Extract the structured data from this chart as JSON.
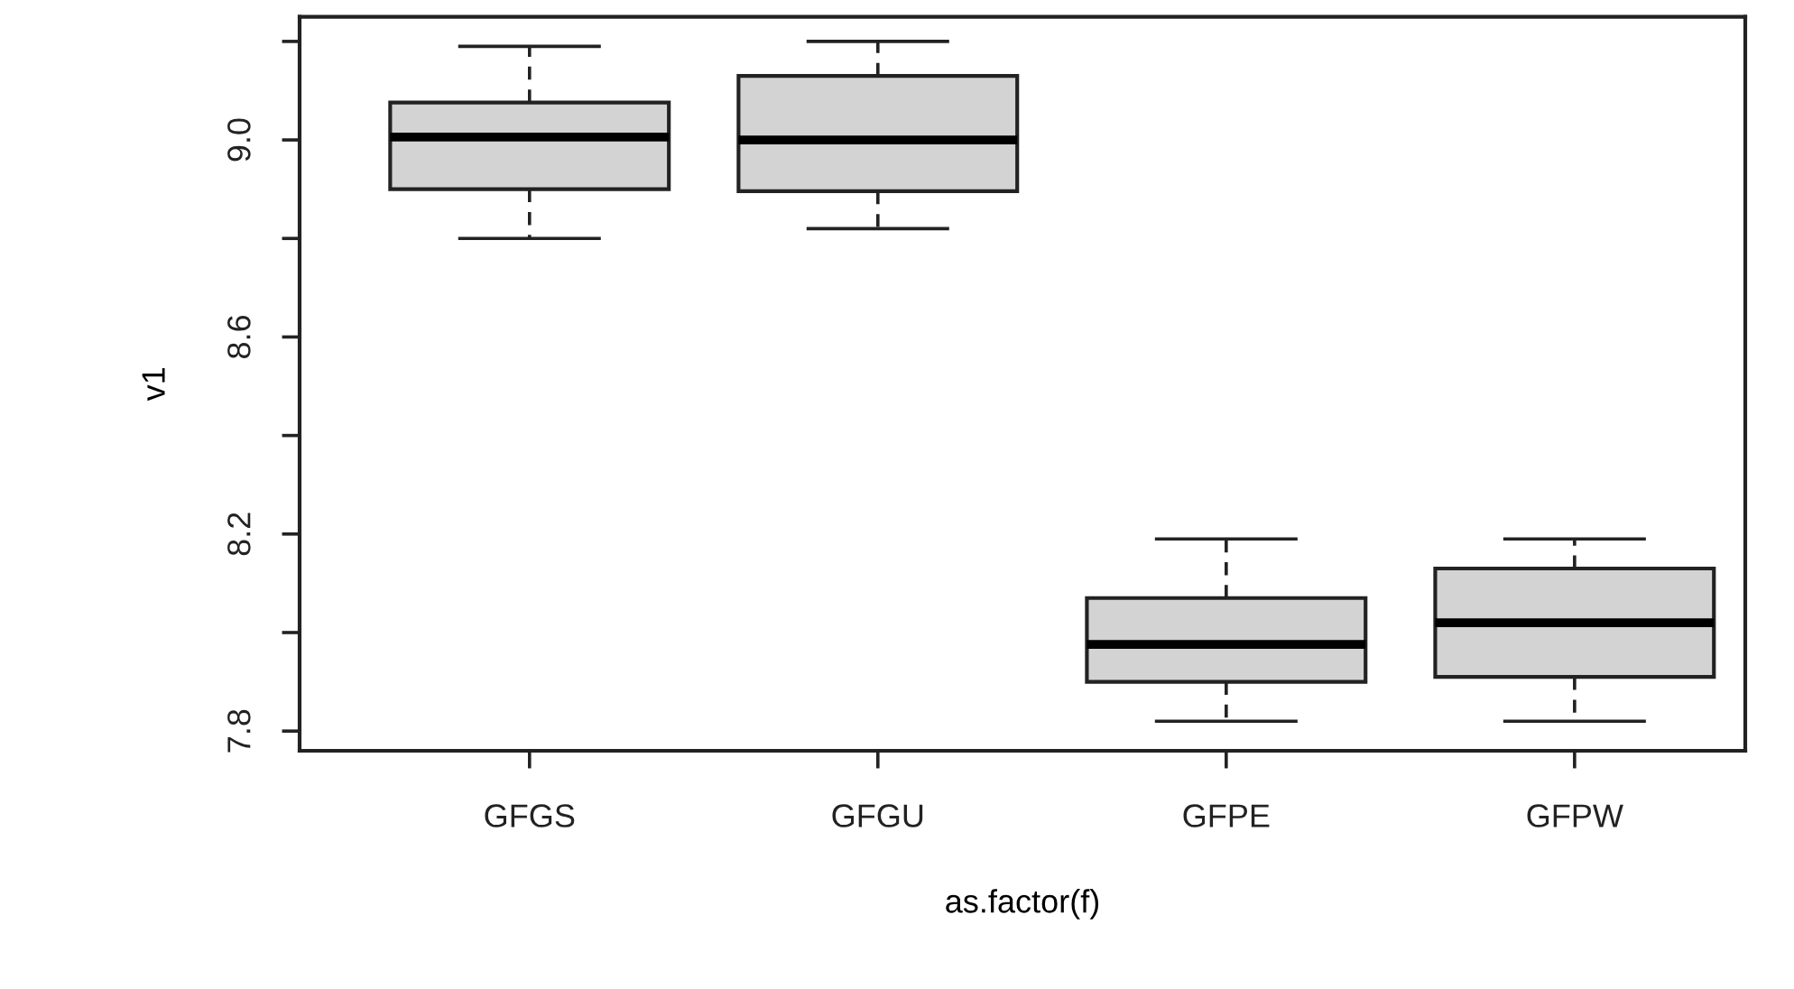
{
  "chart_data": {
    "type": "box",
    "xlabel": "as.factor(f)",
    "ylabel": "v1",
    "categories": [
      "GFGS",
      "GFGU",
      "GFPE",
      "GFPW"
    ],
    "boxes": [
      {
        "low": 8.8,
        "q1": 8.9,
        "median": 9.006,
        "q3": 9.076,
        "high": 9.19
      },
      {
        "low": 8.82,
        "q1": 8.896,
        "median": 9.0,
        "q3": 9.13,
        "high": 9.2
      },
      {
        "low": 7.82,
        "q1": 7.9,
        "median": 7.976,
        "q3": 8.07,
        "high": 8.19
      },
      {
        "low": 7.82,
        "q1": 7.91,
        "median": 8.02,
        "q3": 8.13,
        "high": 8.19
      }
    ],
    "color": "#d3d3d3",
    "ylim": [
      7.76,
      9.25
    ],
    "yticks": [
      7.8,
      {
        "value": 8.0,
        "label": null
      },
      8.2,
      {
        "value": 8.4,
        "label": null
      },
      8.6,
      {
        "value": 8.8,
        "label": null
      },
      {
        "value": 9.0,
        "label": "9.0"
      },
      {
        "value": 9.2,
        "label": null
      }
    ],
    "grid": false,
    "legend": false
  }
}
